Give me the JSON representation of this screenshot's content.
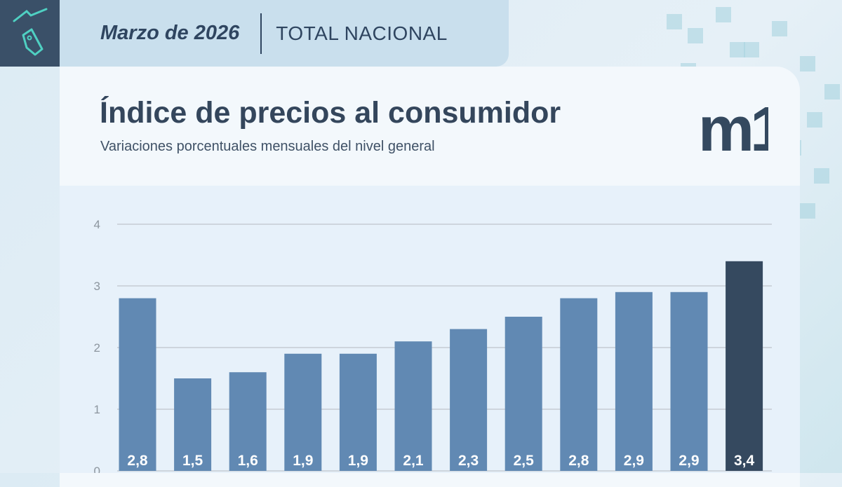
{
  "header": {
    "date": "Marzo de 2026",
    "region": "TOTAL NACIONAL",
    "icon": "price-tag-trend-icon"
  },
  "title": "Índice de precios al consumidor",
  "subtitle": "Variaciones porcentuales mensuales del nivel general",
  "logo": "m1",
  "colors": {
    "bar": "#6189b3",
    "highlight": "#35495f",
    "grid": "#c5ccd3"
  },
  "chart_data": {
    "type": "bar",
    "values": [
      2.8,
      1.5,
      1.6,
      1.9,
      1.9,
      2.1,
      2.3,
      2.5,
      2.8,
      2.9,
      2.9,
      3.4
    ],
    "data_labels": [
      "2,8",
      "1,5",
      "1,6",
      "1,9",
      "1,9",
      "2,1",
      "2,3",
      "2,5",
      "2,8",
      "2,9",
      "2,9",
      "3,4"
    ],
    "highlighted_index": 11,
    "ylim": [
      0,
      4
    ],
    "yticks": [
      "0",
      "1",
      "2",
      "3",
      "4"
    ],
    "grid": true
  }
}
